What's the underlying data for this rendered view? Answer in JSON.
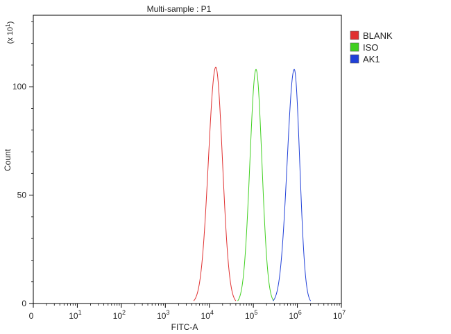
{
  "chart_data": {
    "type": "line",
    "title": "Multi-sample : P1",
    "xlabel": "FITC-A",
    "ylabel": "Count",
    "y_multiplier": "(x 10^1)",
    "x_scale": "log",
    "x_range": [
      1,
      10000000
    ],
    "ylim": [
      0,
      133
    ],
    "grid": false,
    "legend_position": "top-right",
    "x_ticks": [
      {
        "value": 1,
        "base": "0",
        "exp": ""
      },
      {
        "value": 10,
        "base": "10",
        "exp": "1"
      },
      {
        "value": 100,
        "base": "10",
        "exp": "2"
      },
      {
        "value": 1000,
        "base": "10",
        "exp": "3"
      },
      {
        "value": 10000,
        "base": "10",
        "exp": "4"
      },
      {
        "value": 100000,
        "base": "10",
        "exp": "5"
      },
      {
        "value": 1000000,
        "base": "10",
        "exp": "6"
      },
      {
        "value": 10000000,
        "base": "10",
        "exp": "7"
      }
    ],
    "y_ticks": [
      {
        "value": 0,
        "label": "0"
      },
      {
        "value": 50,
        "label": "50"
      },
      {
        "value": 100,
        "label": "100"
      }
    ],
    "series": [
      {
        "name": "BLANK",
        "color": "#e03030",
        "peak_x": 14000,
        "peak_y": 109,
        "start_x": 4400,
        "end_x": 40000
      },
      {
        "name": "ISO",
        "color": "#40d020",
        "peak_x": 115000,
        "peak_y": 108,
        "start_x": 44000,
        "end_x": 290000
      },
      {
        "name": "AK1",
        "color": "#2040d8",
        "peak_x": 850000,
        "peak_y": 108,
        "start_x": 280000,
        "end_x": 2000000
      }
    ]
  }
}
